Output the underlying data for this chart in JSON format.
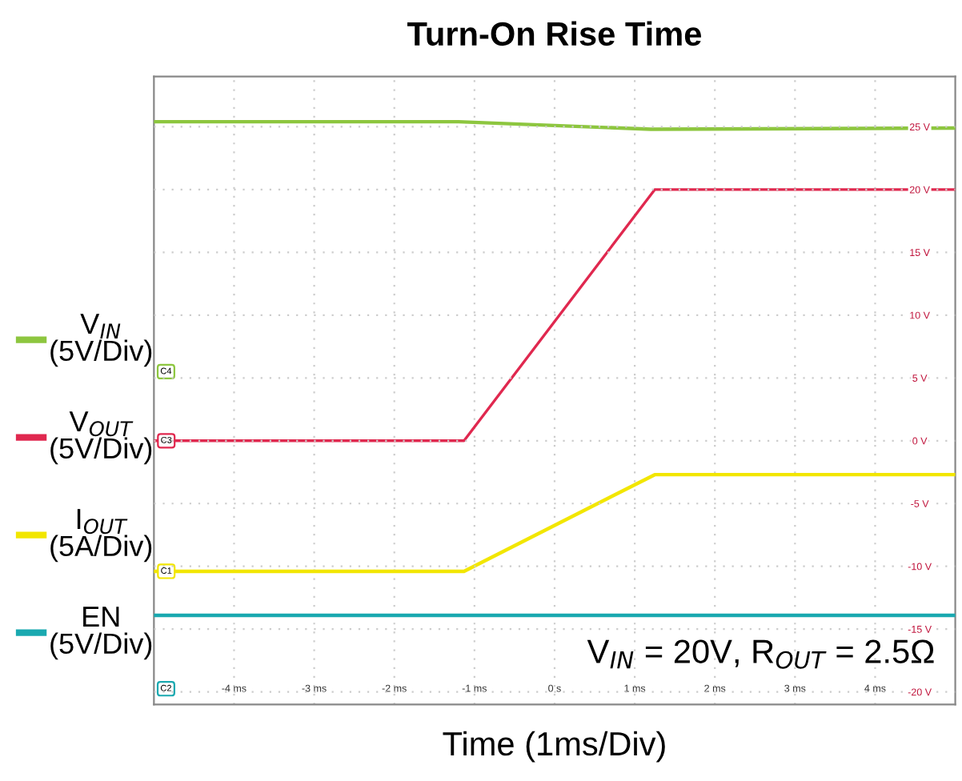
{
  "chart_data": {
    "type": "line",
    "title": "Turn-On Rise Time",
    "xlabel": "Time (1ms/Div)",
    "xlim": [
      -5,
      5
    ],
    "ylim": [
      -21,
      29
    ],
    "xticks": [
      {
        "value": -4,
        "label": "-4 ms"
      },
      {
        "value": -3,
        "label": "-3 ms"
      },
      {
        "value": -2,
        "label": "-2 ms"
      },
      {
        "value": -1,
        "label": "-1 ms"
      },
      {
        "value": 0,
        "label": "0 s"
      },
      {
        "value": 1,
        "label": "1 ms"
      },
      {
        "value": 2,
        "label": "2 ms"
      },
      {
        "value": 3,
        "label": "3 ms"
      },
      {
        "value": 4,
        "label": "4 ms"
      }
    ],
    "yticks": [
      {
        "value": 25,
        "label": "25 V"
      },
      {
        "value": 20,
        "label": "20 V"
      },
      {
        "value": 15,
        "label": "15 V"
      },
      {
        "value": 10,
        "label": "10 V"
      },
      {
        "value": 5,
        "label": "5 V"
      },
      {
        "value": 0,
        "label": "0 V"
      },
      {
        "value": -5,
        "label": "-5 V"
      },
      {
        "value": -10,
        "label": "-10 V"
      },
      {
        "value": -15,
        "label": "-15 V"
      },
      {
        "value": -20,
        "label": "-20 V"
      }
    ],
    "grid": true,
    "line_style": "solid",
    "marker": "none",
    "series": [
      {
        "name": "V$_{IN}$\n(5V/Div)",
        "color": "#8dc63f",
        "x": [
          -5,
          -1.2,
          0,
          1.2,
          5
        ],
        "values": [
          25.4,
          25.4,
          25.1,
          24.8,
          24.9
        ]
      },
      {
        "name": "V$_{OUT}$\n(5V/Div)",
        "color": "#e0284f",
        "x": [
          -5,
          -1.13,
          1.25,
          5
        ],
        "values": [
          0,
          0,
          20,
          20
        ]
      },
      {
        "name": "I$_{OUT}$\n(5A/Div)",
        "color": "#f2e600",
        "x": [
          -5,
          -1.13,
          1.25,
          5
        ],
        "values": [
          -10.4,
          -10.4,
          -2.7,
          -2.7
        ]
      },
      {
        "name": "EN\n(5V/Div)",
        "color": "#1aa9b0",
        "x": [
          -5,
          5
        ],
        "values": [
          -13.9,
          -13.9
        ]
      }
    ],
    "legend": "left",
    "annotations": [
      "V$_{IN}$ = 20V, R$_{OUT}$ = 2.5Ω",
      "C4",
      {
        "text": "C3",
        "x": -5,
        "y": 0
      },
      {
        "text": "C1",
        "x": -5,
        "y": -10.4
      },
      "C2"
    ]
  }
}
